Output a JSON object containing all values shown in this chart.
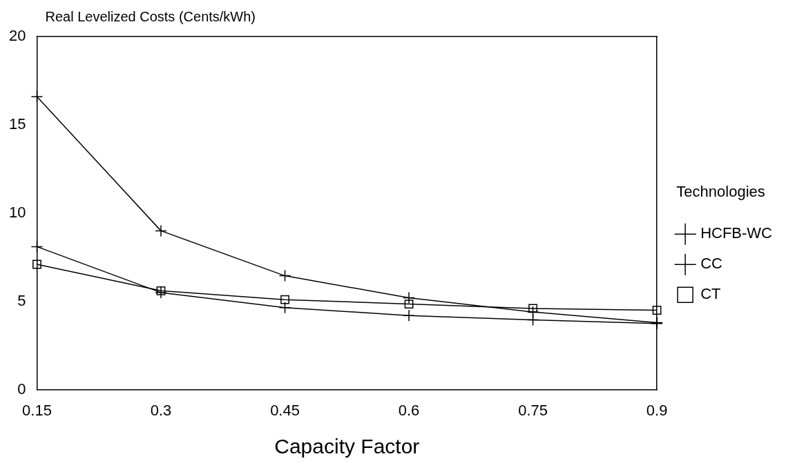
{
  "chart_data": {
    "type": "line",
    "ylabel": "Real Levelized Costs (Cents/kWh)",
    "xlabel": "Capacity Factor",
    "legend_title": "Technologies",
    "x": [
      0.15,
      0.3,
      0.45,
      0.6,
      0.75,
      0.9
    ],
    "series": [
      {
        "name": "HCFB-WC",
        "color": "#000000",
        "marker": "cross",
        "values": [
          16.6,
          9.0,
          6.45,
          5.2,
          4.4,
          3.8
        ]
      },
      {
        "name": "CC",
        "color": "#000000",
        "marker": "cross",
        "values": [
          8.1,
          5.5,
          4.65,
          4.2,
          3.95,
          3.75
        ]
      },
      {
        "name": "CT",
        "color": "#000000",
        "marker": "square",
        "values": [
          7.1,
          5.6,
          5.1,
          4.85,
          4.6,
          4.5
        ]
      }
    ],
    "xlim": [
      0.15,
      0.9
    ],
    "xticks": [
      0.15,
      0.3,
      0.45,
      0.6,
      0.75,
      0.9
    ],
    "ylim": [
      0,
      20
    ],
    "yticks": [
      0,
      5,
      10,
      15,
      20
    ],
    "grid": false,
    "legend": "right",
    "line_style": "solid"
  }
}
